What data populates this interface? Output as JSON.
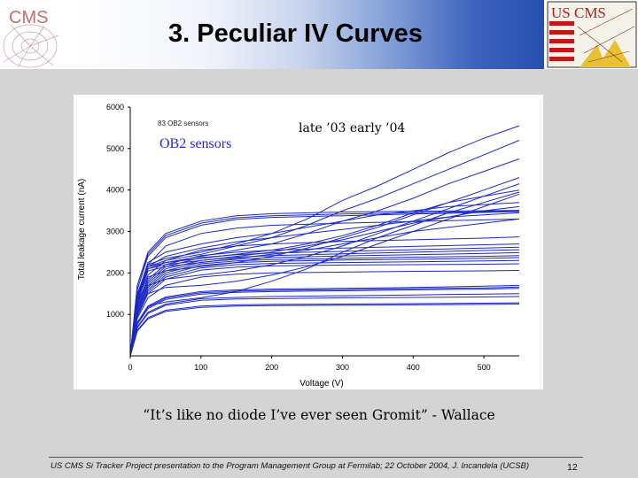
{
  "slide": {
    "title": "3. Peculiar IV Curves",
    "logo_left_text": "CMS",
    "logo_right_text": "US CMS",
    "quote": "“It’s like no diode I’ve ever seen Gromit” - Wallace",
    "footer": "US CMS Si Tracker Project presentation to the Program Management Group at Fermilab;  22 October 2004,  J. Incandela (UCSB)",
    "page_number": "12"
  },
  "colors": {
    "series": "#1c28c4",
    "banner_dark": "#274fb0"
  },
  "chart_data": {
    "type": "line",
    "title": "",
    "xlabel": "Voltage (V)",
    "ylabel": "Total leakage current (nA)",
    "xlim": [
      0,
      550
    ],
    "ylim": [
      0,
      6000
    ],
    "xticks": [
      0,
      100,
      200,
      300,
      400,
      500
    ],
    "yticks": [
      1000,
      2000,
      3000,
      4000,
      5000,
      6000
    ],
    "grid": false,
    "legend": "none",
    "annotations": [
      "83 OB2 sensors",
      "OB2 sensors",
      "late ’03 early ’04"
    ],
    "series": [
      {
        "x": [
          0,
          10,
          25,
          50,
          100,
          150,
          200,
          300,
          400,
          500,
          550
        ],
        "y": [
          0,
          1700,
          2500,
          2950,
          3250,
          3380,
          3430,
          3470,
          3490,
          3500,
          3510
        ]
      },
      {
        "x": [
          0,
          10,
          25,
          50,
          100,
          150,
          200,
          300,
          400,
          500,
          550
        ],
        "y": [
          0,
          1700,
          2450,
          2900,
          3200,
          3330,
          3380,
          3420,
          3450,
          3480,
          3500
        ]
      },
      {
        "x": [
          0,
          10,
          25,
          50,
          100,
          150,
          200,
          300,
          400,
          500,
          550
        ],
        "y": [
          0,
          1600,
          2400,
          2850,
          3150,
          3290,
          3340,
          3380,
          3420,
          3460,
          3480
        ]
      },
      {
        "x": [
          0,
          10,
          25,
          50,
          100,
          150,
          200,
          300,
          400,
          500,
          550
        ],
        "y": [
          0,
          1500,
          2200,
          2650,
          2950,
          3080,
          3150,
          3200,
          3240,
          3280,
          3300
        ]
      },
      {
        "x": [
          0,
          10,
          25,
          50,
          100,
          150,
          200,
          300,
          400,
          500,
          550
        ],
        "y": [
          0,
          1350,
          1950,
          2300,
          2550,
          2650,
          2700,
          2760,
          2800,
          2840,
          2870
        ]
      },
      {
        "x": [
          0,
          10,
          25,
          50,
          100,
          150,
          200,
          300,
          400,
          500,
          550
        ],
        "y": [
          0,
          1300,
          1850,
          2200,
          2420,
          2500,
          2550,
          2600,
          2640,
          2680,
          2700
        ]
      },
      {
        "x": [
          0,
          10,
          25,
          50,
          100,
          150,
          200,
          300,
          400,
          500,
          550
        ],
        "y": [
          0,
          1250,
          1800,
          2150,
          2370,
          2440,
          2480,
          2520,
          2560,
          2600,
          2620
        ]
      },
      {
        "x": [
          0,
          10,
          25,
          50,
          100,
          150,
          200,
          300,
          400,
          500,
          550
        ],
        "y": [
          0,
          1200,
          1750,
          2100,
          2300,
          2380,
          2420,
          2460,
          2500,
          2540,
          2560
        ]
      },
      {
        "x": [
          0,
          10,
          25,
          50,
          100,
          150,
          200,
          300,
          400,
          500,
          550
        ],
        "y": [
          0,
          1150,
          1700,
          2050,
          2260,
          2330,
          2370,
          2410,
          2440,
          2470,
          2490
        ]
      },
      {
        "x": [
          0,
          10,
          25,
          50,
          100,
          150,
          200,
          300,
          400,
          500,
          550
        ],
        "y": [
          0,
          1100,
          1650,
          2000,
          2220,
          2290,
          2320,
          2350,
          2380,
          2400,
          2420
        ]
      },
      {
        "x": [
          0,
          10,
          25,
          50,
          100,
          150,
          200,
          300,
          400,
          500,
          550
        ],
        "y": [
          0,
          1050,
          1600,
          1950,
          2180,
          2250,
          2280,
          2310,
          2330,
          2350,
          2370
        ]
      },
      {
        "x": [
          0,
          10,
          25,
          50,
          100,
          150,
          200,
          300,
          400,
          500,
          550
        ],
        "y": [
          0,
          1000,
          1550,
          1900,
          2120,
          2200,
          2230,
          2250,
          2270,
          2290,
          2300
        ]
      },
      {
        "x": [
          0,
          10,
          25,
          50,
          100,
          150,
          200,
          300,
          400,
          500,
          550
        ],
        "y": [
          0,
          950,
          1500,
          1850,
          2070,
          2140,
          2170,
          2190,
          2200,
          2210,
          2220
        ]
      },
      {
        "x": [
          0,
          10,
          25,
          50,
          100,
          150,
          200,
          300,
          400,
          500,
          550
        ],
        "y": [
          0,
          900,
          1400,
          1700,
          1900,
          1970,
          2000,
          2020,
          2040,
          2050,
          2060
        ]
      },
      {
        "x": [
          0,
          10,
          25,
          50,
          100,
          150,
          200,
          300,
          400,
          500,
          550
        ],
        "y": [
          0,
          800,
          1200,
          1420,
          1550,
          1590,
          1610,
          1630,
          1650,
          1680,
          1700
        ]
      },
      {
        "x": [
          0,
          10,
          25,
          50,
          100,
          150,
          200,
          300,
          400,
          500,
          550
        ],
        "y": [
          0,
          780,
          1170,
          1390,
          1520,
          1560,
          1580,
          1600,
          1620,
          1640,
          1660
        ]
      },
      {
        "x": [
          0,
          10,
          25,
          50,
          100,
          150,
          200,
          300,
          400,
          500,
          550
        ],
        "y": [
          0,
          760,
          1140,
          1360,
          1490,
          1530,
          1550,
          1570,
          1590,
          1610,
          1630
        ]
      },
      {
        "x": [
          0,
          10,
          25,
          50,
          100,
          150,
          200,
          300,
          400,
          500,
          550
        ],
        "y": [
          0,
          700,
          1050,
          1250,
          1380,
          1410,
          1430,
          1450,
          1470,
          1490,
          1500
        ]
      },
      {
        "x": [
          0,
          10,
          25,
          50,
          100,
          150,
          200,
          300,
          400,
          500,
          550
        ],
        "y": [
          0,
          680,
          1020,
          1220,
          1340,
          1370,
          1380,
          1400,
          1410,
          1420,
          1430
        ]
      },
      {
        "x": [
          0,
          10,
          25,
          50,
          100,
          150,
          200,
          300,
          400,
          500,
          550
        ],
        "y": [
          0,
          620,
          920,
          1100,
          1200,
          1230,
          1240,
          1250,
          1260,
          1270,
          1280
        ]
      },
      {
        "x": [
          0,
          10,
          25,
          50,
          100,
          150,
          200,
          300,
          400,
          500,
          550
        ],
        "y": [
          0,
          600,
          890,
          1070,
          1170,
          1200,
          1210,
          1220,
          1230,
          1240,
          1250
        ]
      },
      {
        "x": [
          0,
          10,
          25,
          50,
          100,
          150,
          200,
          250,
          300,
          350,
          400,
          450,
          500,
          550
        ],
        "y": [
          0,
          1400,
          2200,
          2350,
          2500,
          2700,
          2950,
          3300,
          3750,
          4100,
          4500,
          4900,
          5250,
          5550
        ]
      },
      {
        "x": [
          0,
          10,
          25,
          50,
          100,
          150,
          200,
          250,
          300,
          350,
          400,
          450,
          500,
          550
        ],
        "y": [
          0,
          1350,
          2150,
          2300,
          2450,
          2650,
          2850,
          3150,
          3500,
          3800,
          4150,
          4500,
          4850,
          5200
        ]
      },
      {
        "x": [
          0,
          10,
          25,
          50,
          100,
          150,
          200,
          250,
          300,
          350,
          400,
          450,
          500,
          550
        ],
        "y": [
          0,
          1300,
          2100,
          2250,
          2400,
          2550,
          2700,
          2950,
          3250,
          3500,
          3800,
          4150,
          4450,
          4750
        ]
      },
      {
        "x": [
          0,
          10,
          25,
          50,
          100,
          150,
          200,
          250,
          300,
          350,
          400,
          450,
          500,
          550
        ],
        "y": [
          0,
          1200,
          1900,
          2050,
          2150,
          2250,
          2400,
          2600,
          2850,
          3100,
          3400,
          3700,
          4000,
          4300
        ]
      },
      {
        "x": [
          0,
          10,
          25,
          50,
          100,
          150,
          200,
          250,
          300,
          350,
          400,
          450,
          500,
          550
        ],
        "y": [
          0,
          1100,
          1700,
          1850,
          1950,
          2050,
          2200,
          2400,
          2650,
          2950,
          3250,
          3550,
          3850,
          4150
        ]
      },
      {
        "x": [
          0,
          10,
          25,
          50,
          100,
          150,
          200,
          250,
          300,
          350,
          400,
          450,
          500,
          550
        ],
        "y": [
          0,
          1000,
          1500,
          1650,
          1700,
          1800,
          1950,
          2150,
          2400,
          2700,
          3000,
          3300,
          3600,
          3900
        ]
      },
      {
        "x": [
          0,
          10,
          25,
          50,
          100,
          150,
          200,
          250,
          300,
          350,
          400,
          450,
          500,
          550
        ],
        "y": [
          0,
          800,
          1200,
          1300,
          1400,
          1550,
          1800,
          2100,
          2500,
          2850,
          3150,
          3450,
          3700,
          3950
        ]
      },
      {
        "x": [
          0,
          10,
          25,
          50,
          100,
          150,
          200,
          250,
          300,
          350,
          400,
          450,
          500,
          550
        ],
        "y": [
          0,
          1400,
          2150,
          2250,
          2350,
          2450,
          2550,
          2700,
          2900,
          3150,
          3450,
          3700,
          3850,
          4000
        ]
      },
      {
        "x": [
          0,
          10,
          25,
          50,
          100,
          150,
          200,
          250,
          300,
          350,
          400,
          450,
          500,
          550
        ],
        "y": [
          0,
          1350,
          2100,
          2200,
          2300,
          2400,
          2500,
          2650,
          2800,
          3000,
          3200,
          3350,
          3500,
          3600
        ]
      },
      {
        "x": [
          0,
          10,
          25,
          50,
          100,
          150,
          200,
          250,
          300,
          350,
          400,
          450,
          500,
          550
        ],
        "y": [
          0,
          1300,
          2050,
          2150,
          2250,
          2350,
          2450,
          2550,
          2700,
          2850,
          3000,
          3100,
          3200,
          3300
        ]
      },
      {
        "x": [
          0,
          10,
          25,
          50,
          100,
          150,
          200,
          250,
          300,
          350,
          400,
          450,
          500,
          550
        ],
        "y": [
          0,
          1450,
          2250,
          2500,
          2700,
          2850,
          2950,
          3100,
          3250,
          3400,
          3500,
          3600,
          3650,
          3700
        ]
      },
      {
        "x": [
          0,
          10,
          25,
          50,
          100,
          150,
          200,
          250,
          300,
          350,
          400,
          450,
          500,
          550
        ],
        "y": [
          0,
          1400,
          2150,
          2400,
          2600,
          2750,
          2850,
          2950,
          3050,
          3150,
          3250,
          3350,
          3400,
          3450
        ]
      }
    ]
  }
}
